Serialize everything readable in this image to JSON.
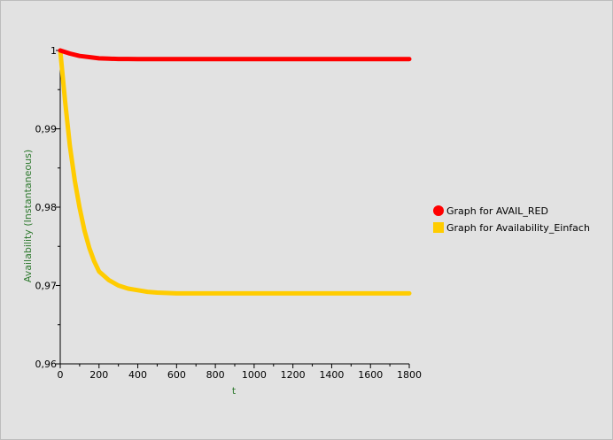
{
  "chart_data": {
    "type": "line",
    "title": "",
    "xlabel": "t",
    "ylabel": "Availability (Instantaneous)",
    "xlim": [
      0,
      1800
    ],
    "ylim": [
      0.96,
      1.0
    ],
    "x_ticks": [
      0,
      200,
      400,
      600,
      800,
      1000,
      1200,
      1400,
      1600,
      1800
    ],
    "x_tick_labels": [
      "0",
      "200",
      "400",
      "600",
      "800",
      "1000",
      "1200",
      "1400",
      "1600",
      "1800"
    ],
    "y_ticks": [
      0.96,
      0.97,
      0.98,
      0.99,
      1.0
    ],
    "y_tick_labels": [
      "0,96",
      "0,97",
      "0,98",
      "0,99",
      "1"
    ],
    "grid": false,
    "legend_position": "right",
    "series": [
      {
        "name": "Graph for AVAIL_RED",
        "color": "#ff0000",
        "marker": "circle",
        "x": [
          0,
          50,
          100,
          150,
          200,
          250,
          300,
          350,
          400,
          450,
          500,
          600,
          800,
          1000,
          1200,
          1400,
          1600,
          1800
        ],
        "y": [
          1.0,
          0.9996,
          0.9993,
          0.99915,
          0.999,
          0.99895,
          0.99892,
          0.99891,
          0.9989,
          0.9989,
          0.9989,
          0.9989,
          0.9989,
          0.9989,
          0.9989,
          0.9989,
          0.9989,
          0.9989
        ]
      },
      {
        "name": "Graph for Availability_Einfach",
        "color": "#ffcc00",
        "marker": "square",
        "x": [
          0,
          25,
          50,
          75,
          100,
          125,
          150,
          175,
          200,
          250,
          300,
          350,
          400,
          450,
          500,
          600,
          800,
          1000,
          1200,
          1400,
          1600,
          1800
        ],
        "y": [
          1.0,
          0.9935,
          0.9878,
          0.9834,
          0.9799,
          0.977,
          0.9748,
          0.9731,
          0.9718,
          0.9707,
          0.97,
          0.9696,
          0.9694,
          0.9692,
          0.9691,
          0.969,
          0.969,
          0.969,
          0.969,
          0.969,
          0.969,
          0.969
        ]
      }
    ]
  }
}
